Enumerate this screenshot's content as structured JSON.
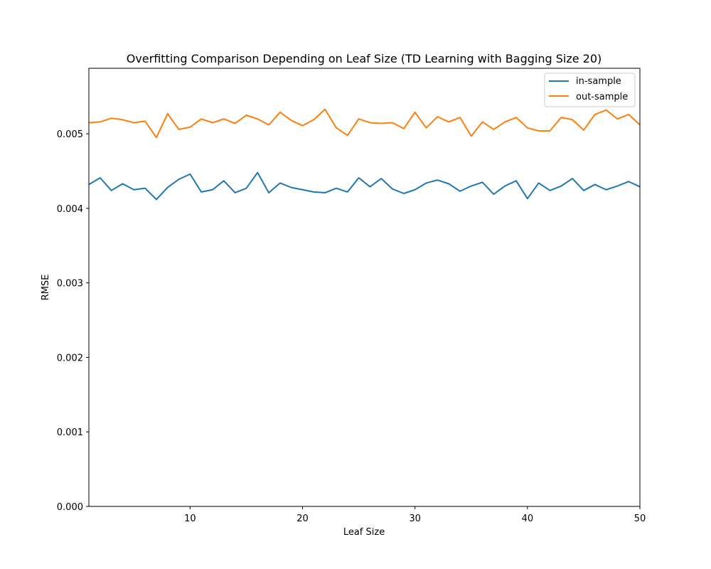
{
  "chart_data": {
    "type": "line",
    "title": "Overfitting Comparison Depending on Leaf Size (TD Learning with Bagging Size 20)",
    "xlabel": "Leaf Size",
    "ylabel": "RMSE",
    "xlim": [
      1,
      50
    ],
    "ylim": [
      0,
      0.00588
    ],
    "xticks": [
      10,
      20,
      30,
      40,
      50
    ],
    "yticks": [
      0,
      0.001,
      0.002,
      0.003,
      0.004,
      0.005
    ],
    "ytick_labels": [
      "0.000",
      "0.001",
      "0.002",
      "0.003",
      "0.004",
      "0.005"
    ],
    "grid": false,
    "legend_position": "top-right",
    "x": [
      1,
      2,
      3,
      4,
      5,
      6,
      7,
      8,
      9,
      10,
      11,
      12,
      13,
      14,
      15,
      16,
      17,
      18,
      19,
      20,
      21,
      22,
      23,
      24,
      25,
      26,
      27,
      28,
      29,
      30,
      31,
      32,
      33,
      34,
      35,
      36,
      37,
      38,
      39,
      40,
      41,
      42,
      43,
      44,
      45,
      46,
      47,
      48,
      49,
      50
    ],
    "series": [
      {
        "name": "in-sample",
        "color": "#1f77b4",
        "values": [
          0.00432,
          0.00441,
          0.00424,
          0.00433,
          0.00425,
          0.00427,
          0.00412,
          0.00428,
          0.00439,
          0.00446,
          0.00422,
          0.00425,
          0.00437,
          0.00421,
          0.00427,
          0.00448,
          0.00421,
          0.00434,
          0.00428,
          0.00425,
          0.00422,
          0.00421,
          0.00427,
          0.00422,
          0.00441,
          0.00429,
          0.0044,
          0.00426,
          0.0042,
          0.00425,
          0.00434,
          0.00438,
          0.00433,
          0.00423,
          0.0043,
          0.00435,
          0.00419,
          0.0043,
          0.00437,
          0.00413,
          0.00434,
          0.00424,
          0.0043,
          0.0044,
          0.00424,
          0.00432,
          0.00425,
          0.0043,
          0.00436,
          0.00429
        ]
      },
      {
        "name": "out-sample",
        "color": "#ff7f0e",
        "values": [
          0.00515,
          0.00516,
          0.00521,
          0.00519,
          0.00515,
          0.00517,
          0.00495,
          0.00527,
          0.00506,
          0.00509,
          0.0052,
          0.00515,
          0.0052,
          0.00514,
          0.00525,
          0.0052,
          0.00512,
          0.00529,
          0.00518,
          0.00511,
          0.00519,
          0.00533,
          0.00508,
          0.00498,
          0.0052,
          0.00515,
          0.00514,
          0.00515,
          0.00507,
          0.00529,
          0.00508,
          0.00523,
          0.00516,
          0.00522,
          0.00497,
          0.00516,
          0.00506,
          0.00516,
          0.00522,
          0.00508,
          0.00504,
          0.00504,
          0.00522,
          0.00519,
          0.00505,
          0.00526,
          0.00532,
          0.0052,
          0.00526,
          0.00512
        ]
      }
    ]
  }
}
